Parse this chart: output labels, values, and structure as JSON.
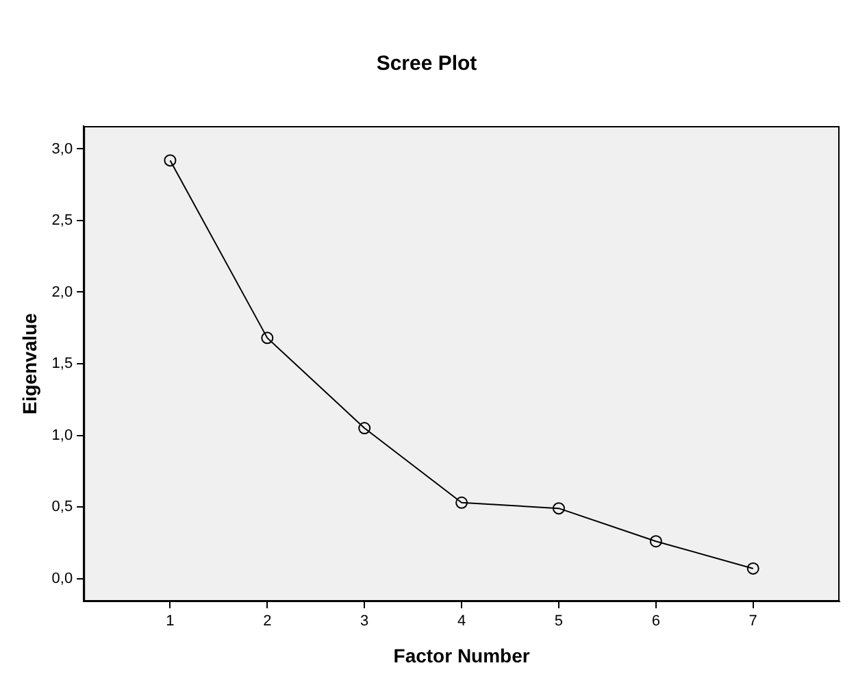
{
  "chart_data": {
    "type": "line",
    "title": "Scree Plot",
    "xlabel": "Factor Number",
    "ylabel": "Eigenvalue",
    "x": [
      1,
      2,
      3,
      4,
      5,
      6,
      7
    ],
    "values": [
      2.92,
      1.68,
      1.05,
      0.53,
      0.49,
      0.26,
      0.07
    ],
    "color": "#000000",
    "marker": "circle",
    "line_style": "solid",
    "grid": false,
    "legend": false,
    "xlim": [
      0.11,
      7.89
    ],
    "xticks": [
      1,
      2,
      3,
      4,
      5,
      6,
      7
    ],
    "ylim": [
      -0.16,
      3.16
    ],
    "yticks": [
      {
        "value": 0,
        "label": "0,0"
      },
      {
        "value": 0.5,
        "label": "0,5"
      },
      {
        "value": 1,
        "label": "1,0"
      },
      {
        "value": 1.5,
        "label": "1,5"
      },
      {
        "value": 2,
        "label": "2,0"
      },
      {
        "value": 2.5,
        "label": "2,5"
      },
      {
        "value": 3,
        "label": "3,0"
      }
    ]
  }
}
